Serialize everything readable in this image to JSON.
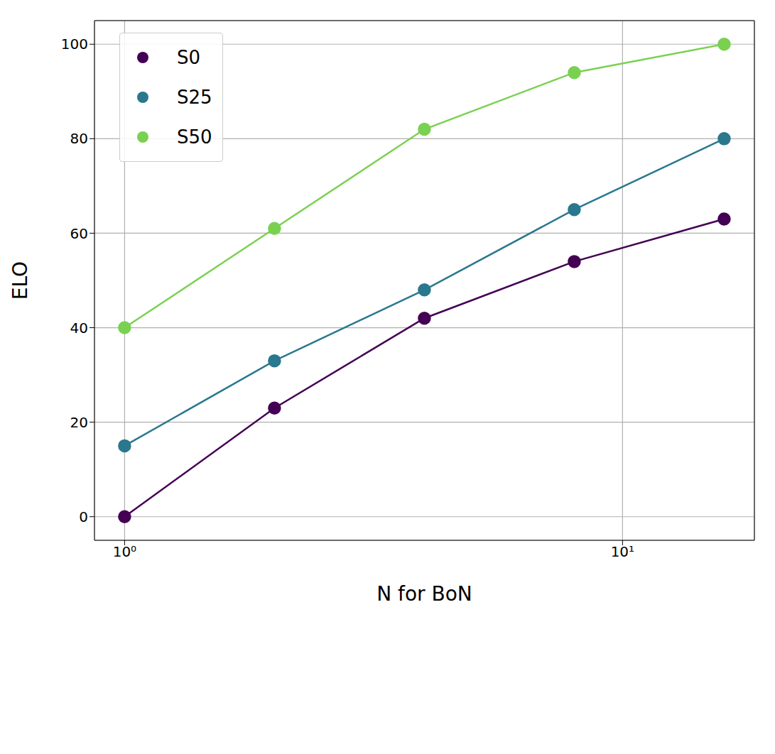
{
  "chart_data": {
    "type": "line",
    "x": [
      1,
      2,
      4,
      8,
      16
    ],
    "x_label": "N for BoN",
    "y_label": "ELO",
    "series": [
      {
        "name": "S0",
        "color": "#440154",
        "values": [
          0,
          23,
          42,
          54,
          63
        ]
      },
      {
        "name": "S25",
        "color": "#2a788e",
        "values": [
          15,
          33,
          48,
          65,
          80
        ]
      },
      {
        "name": "S50",
        "color": "#7ad151",
        "values": [
          40,
          61,
          82,
          94,
          100
        ]
      }
    ],
    "xlim": [
      0.87,
      18.4
    ],
    "ylim": [
      -5,
      105
    ],
    "xticks": [
      {
        "value": 1,
        "label": "10⁰"
      },
      {
        "value": 10,
        "label": "10¹"
      }
    ],
    "yticks": [
      0,
      20,
      40,
      60,
      80,
      100
    ],
    "log": "x",
    "grid": true,
    "legend": "upper left",
    "marker": "circle",
    "line_style": "solid"
  }
}
